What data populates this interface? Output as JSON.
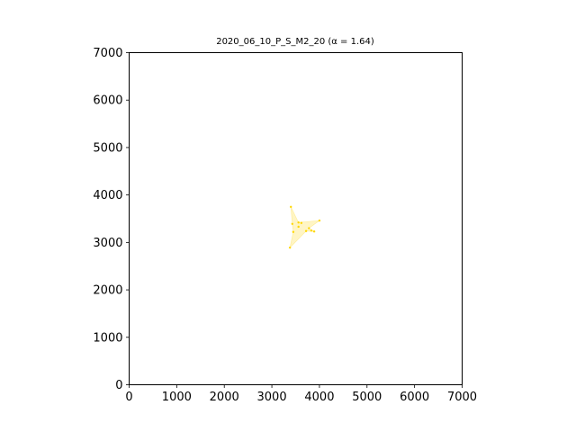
{
  "chart_data": {
    "type": "area",
    "title": "2020_06_10_P_S_M2_20 (α = 1.64)",
    "xlabel": "",
    "ylabel": "",
    "xlim": [
      0,
      7000
    ],
    "ylim": [
      0,
      7000
    ],
    "xticks": [
      0,
      1000,
      2000,
      3000,
      4000,
      5000,
      6000,
      7000
    ],
    "yticks": [
      0,
      1000,
      2000,
      3000,
      4000,
      5000,
      6000,
      7000
    ],
    "grid": false,
    "fill_color": "#ffe97f",
    "fill_opacity": 0.45,
    "point_color": "#ffd700",
    "polygon": [
      [
        3400,
        3750
      ],
      [
        3560,
        3420
      ],
      [
        4000,
        3460
      ],
      [
        3780,
        3300
      ],
      [
        3890,
        3230
      ],
      [
        3720,
        3240
      ],
      [
        3380,
        2890
      ],
      [
        3450,
        3220
      ],
      [
        3430,
        3390
      ]
    ],
    "points": [
      [
        3400,
        3750
      ],
      [
        3430,
        3390
      ],
      [
        3560,
        3420
      ],
      [
        3620,
        3410
      ],
      [
        4000,
        3460
      ],
      [
        3780,
        3300
      ],
      [
        3890,
        3230
      ],
      [
        3830,
        3250
      ],
      [
        3720,
        3240
      ],
      [
        3450,
        3220
      ],
      [
        3380,
        2890
      ],
      [
        3560,
        3330
      ]
    ]
  }
}
